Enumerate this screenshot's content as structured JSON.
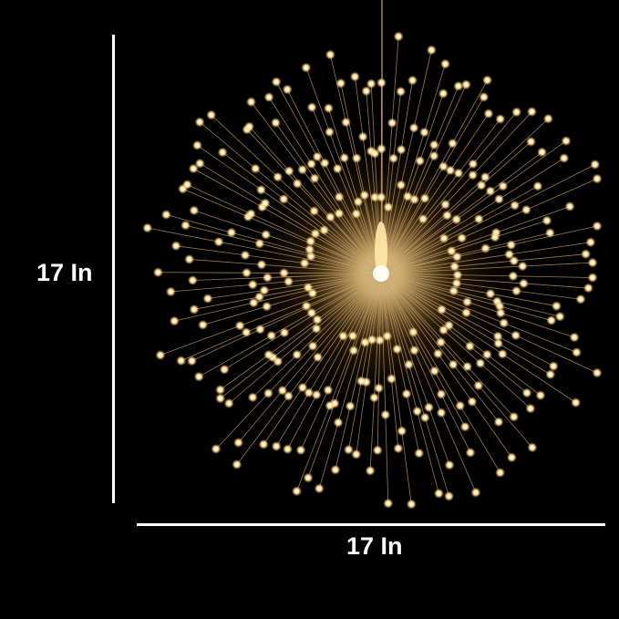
{
  "height_label": "17 In",
  "width_label": "17 In",
  "colors": {
    "background": "#000000",
    "wire": "#c9a36a",
    "bulb": "#fff3c8",
    "glow": "#ffcc66",
    "dimension_line": "#ffffff"
  }
}
